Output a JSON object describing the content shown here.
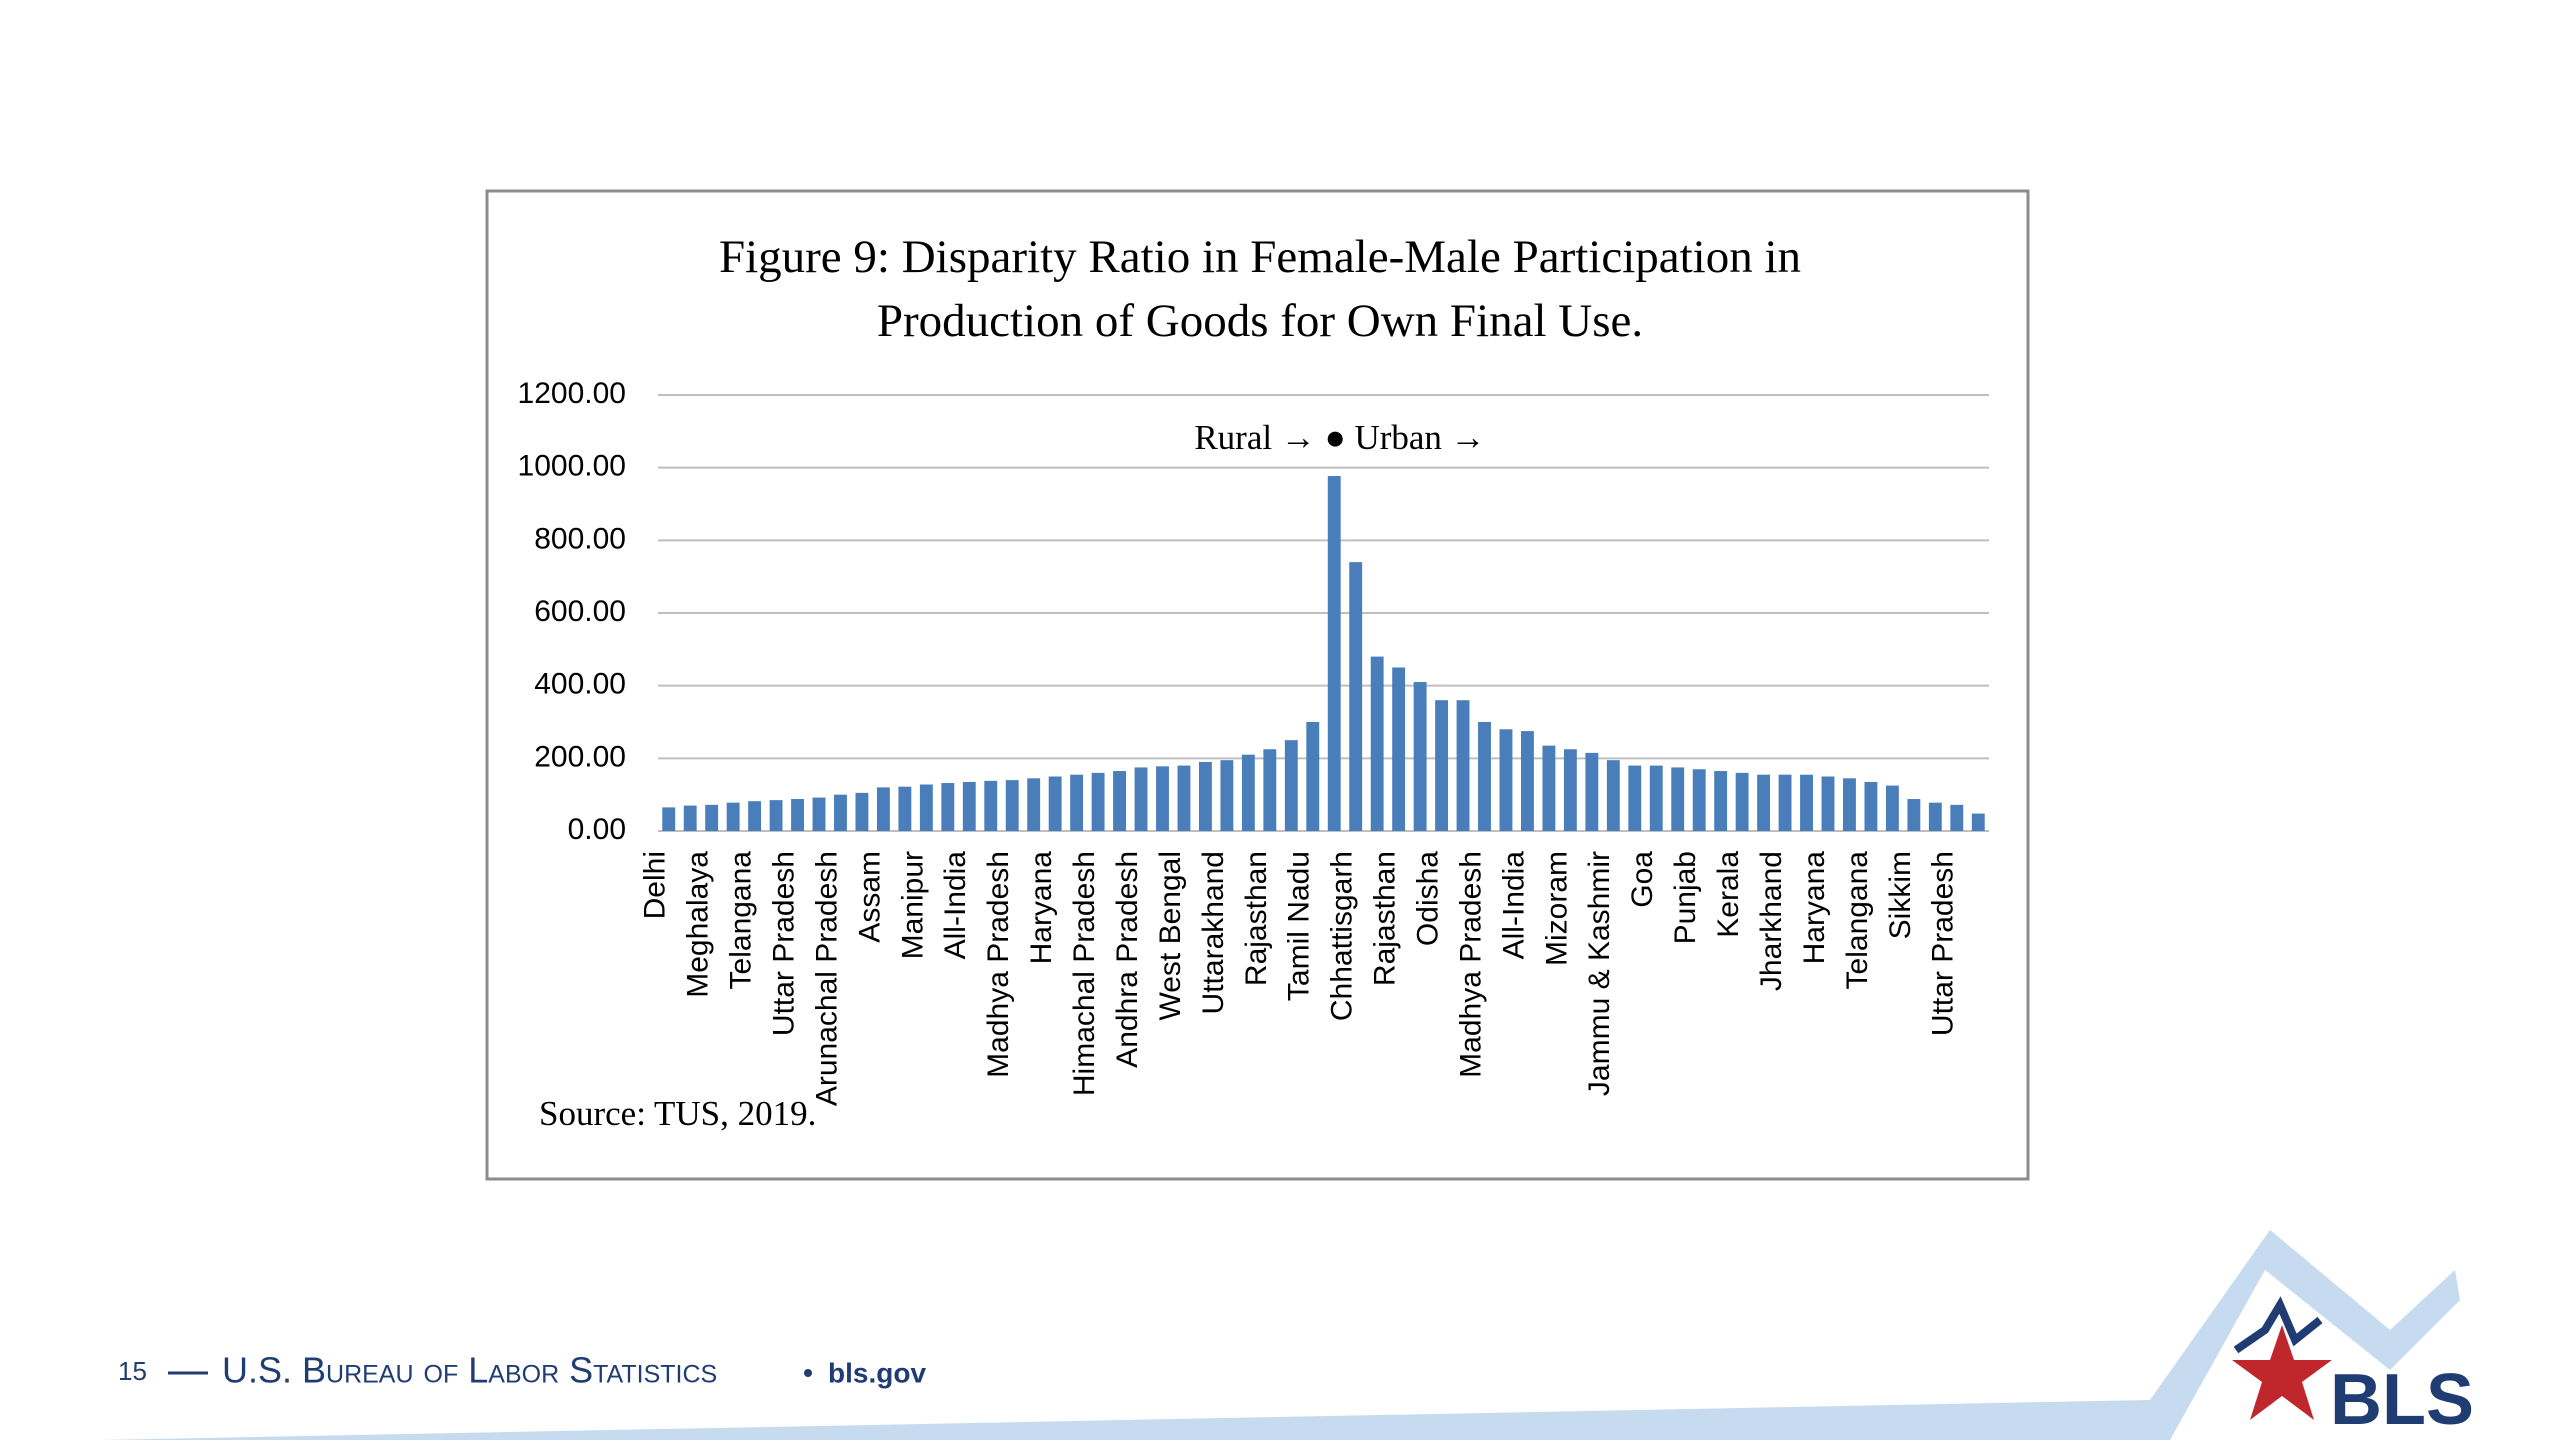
{
  "chart_data": {
    "type": "bar",
    "title": "Figure 9: Disparity Ratio in Female-Male Participation in Production of Goods for Own Final Use.",
    "annotation": "Rural → ● Urban →",
    "source": "Source: TUS, 2019.",
    "categories": [
      "Delhi",
      null,
      "Meghalaya",
      null,
      "Telangana",
      null,
      "Uttar Pradesh",
      null,
      "Arunachal Pradesh",
      null,
      "Assam",
      null,
      "Manipur",
      null,
      "All-India",
      null,
      "Madhya Pradesh",
      null,
      "Haryana",
      null,
      "Himachal Pradesh",
      null,
      "Andhra Pradesh",
      null,
      "West Bengal",
      null,
      "Uttarakhand",
      null,
      "Rajasthan",
      null,
      "Tamil Nadu",
      null,
      "Chhattisgarh",
      null,
      "Rajasthan",
      null,
      "Odisha",
      null,
      "Madhya Pradesh",
      null,
      "All-India",
      null,
      "Mizoram",
      null,
      "Jammu & Kashmir",
      null,
      "Goa",
      null,
      "Punjab",
      null,
      "Kerala",
      null,
      "Jharkhand",
      null,
      "Haryana",
      null,
      "Telangana",
      null,
      "Sikkim",
      null,
      "Uttar Pradesh",
      null
    ],
    "values": [
      65,
      70,
      72,
      78,
      82,
      85,
      88,
      92,
      100,
      105,
      120,
      122,
      128,
      132,
      135,
      138,
      140,
      145,
      150,
      155,
      160,
      165,
      175,
      178,
      180,
      190,
      195,
      210,
      225,
      250,
      300,
      977,
      740,
      480,
      450,
      410,
      360,
      360,
      300,
      280,
      275,
      235,
      225,
      215,
      195,
      180,
      180,
      175,
      170,
      165,
      160,
      155,
      155,
      155,
      150,
      145,
      135,
      125,
      88,
      78,
      72,
      48
    ],
    "color": "#4a7ebb",
    "ylim": [
      0,
      1200
    ],
    "yticks": [
      {
        "value": 0,
        "label": "0.00"
      },
      {
        "value": 200,
        "label": "200.00"
      },
      {
        "value": 400,
        "label": "400.00"
      },
      {
        "value": 600,
        "label": "600.00"
      },
      {
        "value": 800,
        "label": "800.00"
      },
      {
        "value": 1000,
        "label": "1000.00"
      },
      {
        "value": 1200,
        "label": "1200.00"
      }
    ],
    "grid": true
  },
  "footer": {
    "page": "15",
    "org": "U.S. Bureau of Labor Statistics",
    "site": "bls.gov",
    "logo": "BLS"
  }
}
